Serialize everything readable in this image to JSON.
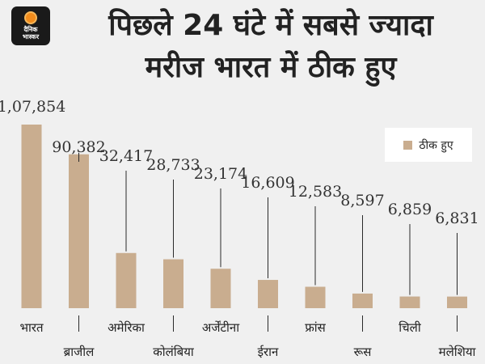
{
  "logo": {
    "line1": "दैनिक",
    "line2": "भास्कर"
  },
  "title_line1": "पिछले 24 घंटे में सबसे ज्यादा",
  "title_line2": "मरीज भारत में ठीक हुए",
  "colors": {
    "bar": "#c9ad8f",
    "leader": "#2a2a2a",
    "background": "#f0f0f0"
  },
  "chart_data": {
    "type": "bar",
    "categories": [
      "भारत",
      "ब्राजील",
      "अमेरिका",
      "कोलंबिया",
      "अर्जेंटीना",
      "ईरान",
      "फ्रांस",
      "रूस",
      "चिली",
      "मलेशिया"
    ],
    "series": [
      {
        "name": "ठीक हुए",
        "values": [
          107854,
          90382,
          32417,
          28733,
          23174,
          16609,
          12583,
          8597,
          6859,
          6831
        ]
      }
    ],
    "data_labels": [
      "1,07,854",
      "90,382",
      "32,417",
      "28,733",
      "23,174",
      "16,609",
      "12,583",
      "8,597",
      "6,859",
      "6,831"
    ],
    "title": "पिछले 24 घंटे में सबसे ज्यादा मरीज भारत में ठीक हुए",
    "legend": "top-right",
    "grid": false
  }
}
